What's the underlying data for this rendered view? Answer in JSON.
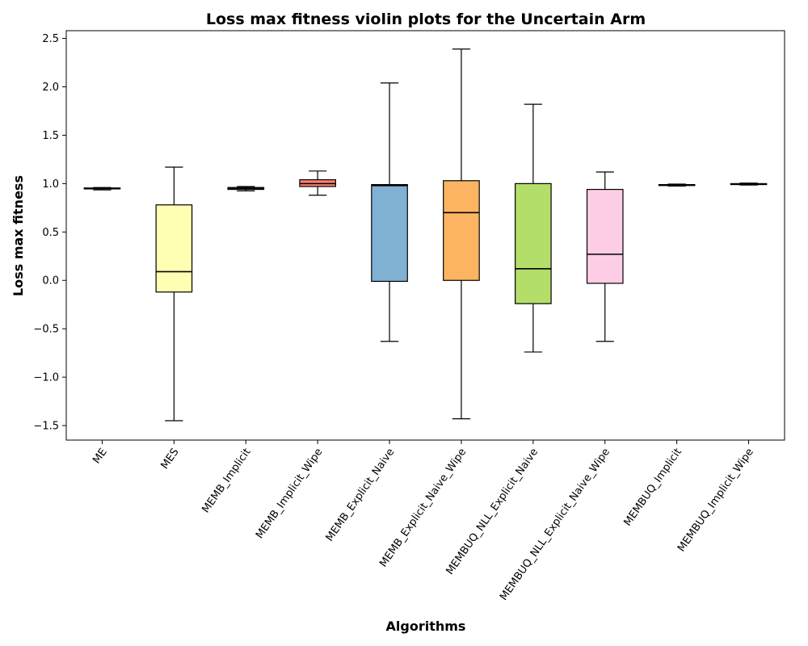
{
  "chart_data": {
    "type": "box",
    "title": "Loss max fitness violin plots for the Uncertain Arm",
    "xlabel": "Algorithms",
    "ylabel": "Loss max fitness",
    "ylim": [
      -1.65,
      2.58
    ],
    "yticks": [
      -1.5,
      -1.0,
      -0.5,
      0.0,
      0.5,
      1.0,
      1.5,
      2.0,
      2.5
    ],
    "ytick_labels": [
      "−1.5",
      "−1.0",
      "−0.5",
      "0.0",
      "0.5",
      "1.0",
      "1.5",
      "2.0",
      "2.5"
    ],
    "grid": false,
    "categories": [
      "ME",
      "MES",
      "MEMB_Implicit",
      "MEMB_Implicit_Wipe",
      "MEMB_Explicit_Naive",
      "MEMB_Explicit_Naive_Wipe",
      "MEMBUQ_NLL_Explicit_Naive",
      "MEMBUQ_NLL_Explicit_Naive_Wipe",
      "MEMBUQ_Implicit",
      "MEMBUQ_Implicit_Wipe"
    ],
    "series": [
      {
        "boxes": [
          {
            "whislo": 0.935,
            "q1": 0.945,
            "med": 0.95,
            "q3": 0.955,
            "whishi": 0.96
          },
          {
            "whislo": -1.45,
            "q1": -0.12,
            "med": 0.09,
            "q3": 0.78,
            "whishi": 1.17
          },
          {
            "whislo": 0.925,
            "q1": 0.94,
            "med": 0.95,
            "q3": 0.96,
            "whishi": 0.97
          },
          {
            "whislo": 0.88,
            "q1": 0.97,
            "med": 1.0,
            "q3": 1.04,
            "whishi": 1.13
          },
          {
            "whislo": -0.63,
            "q1": -0.01,
            "med": 0.98,
            "q3": 0.99,
            "whishi": 2.04
          },
          {
            "whislo": -1.43,
            "q1": 0.0,
            "med": 0.7,
            "q3": 1.03,
            "whishi": 2.39
          },
          {
            "whislo": -0.74,
            "q1": -0.24,
            "med": 0.12,
            "q3": 1.0,
            "whishi": 1.82
          },
          {
            "whislo": -0.63,
            "q1": -0.03,
            "med": 0.27,
            "q3": 0.94,
            "whishi": 1.12
          },
          {
            "whislo": 0.975,
            "q1": 0.98,
            "med": 0.985,
            "q3": 0.99,
            "whishi": 0.995
          },
          {
            "whislo": 0.985,
            "q1": 0.99,
            "med": 0.995,
            "q3": 1.0,
            "whishi": 1.005
          }
        ]
      }
    ],
    "colors": [
      "#8dd3c7",
      "#ffffb3",
      "#bebada",
      "#fb8072",
      "#80b1d3",
      "#fdb462",
      "#b3de69",
      "#fccde5",
      "#d9d9d9",
      "#bc80bd"
    ]
  }
}
